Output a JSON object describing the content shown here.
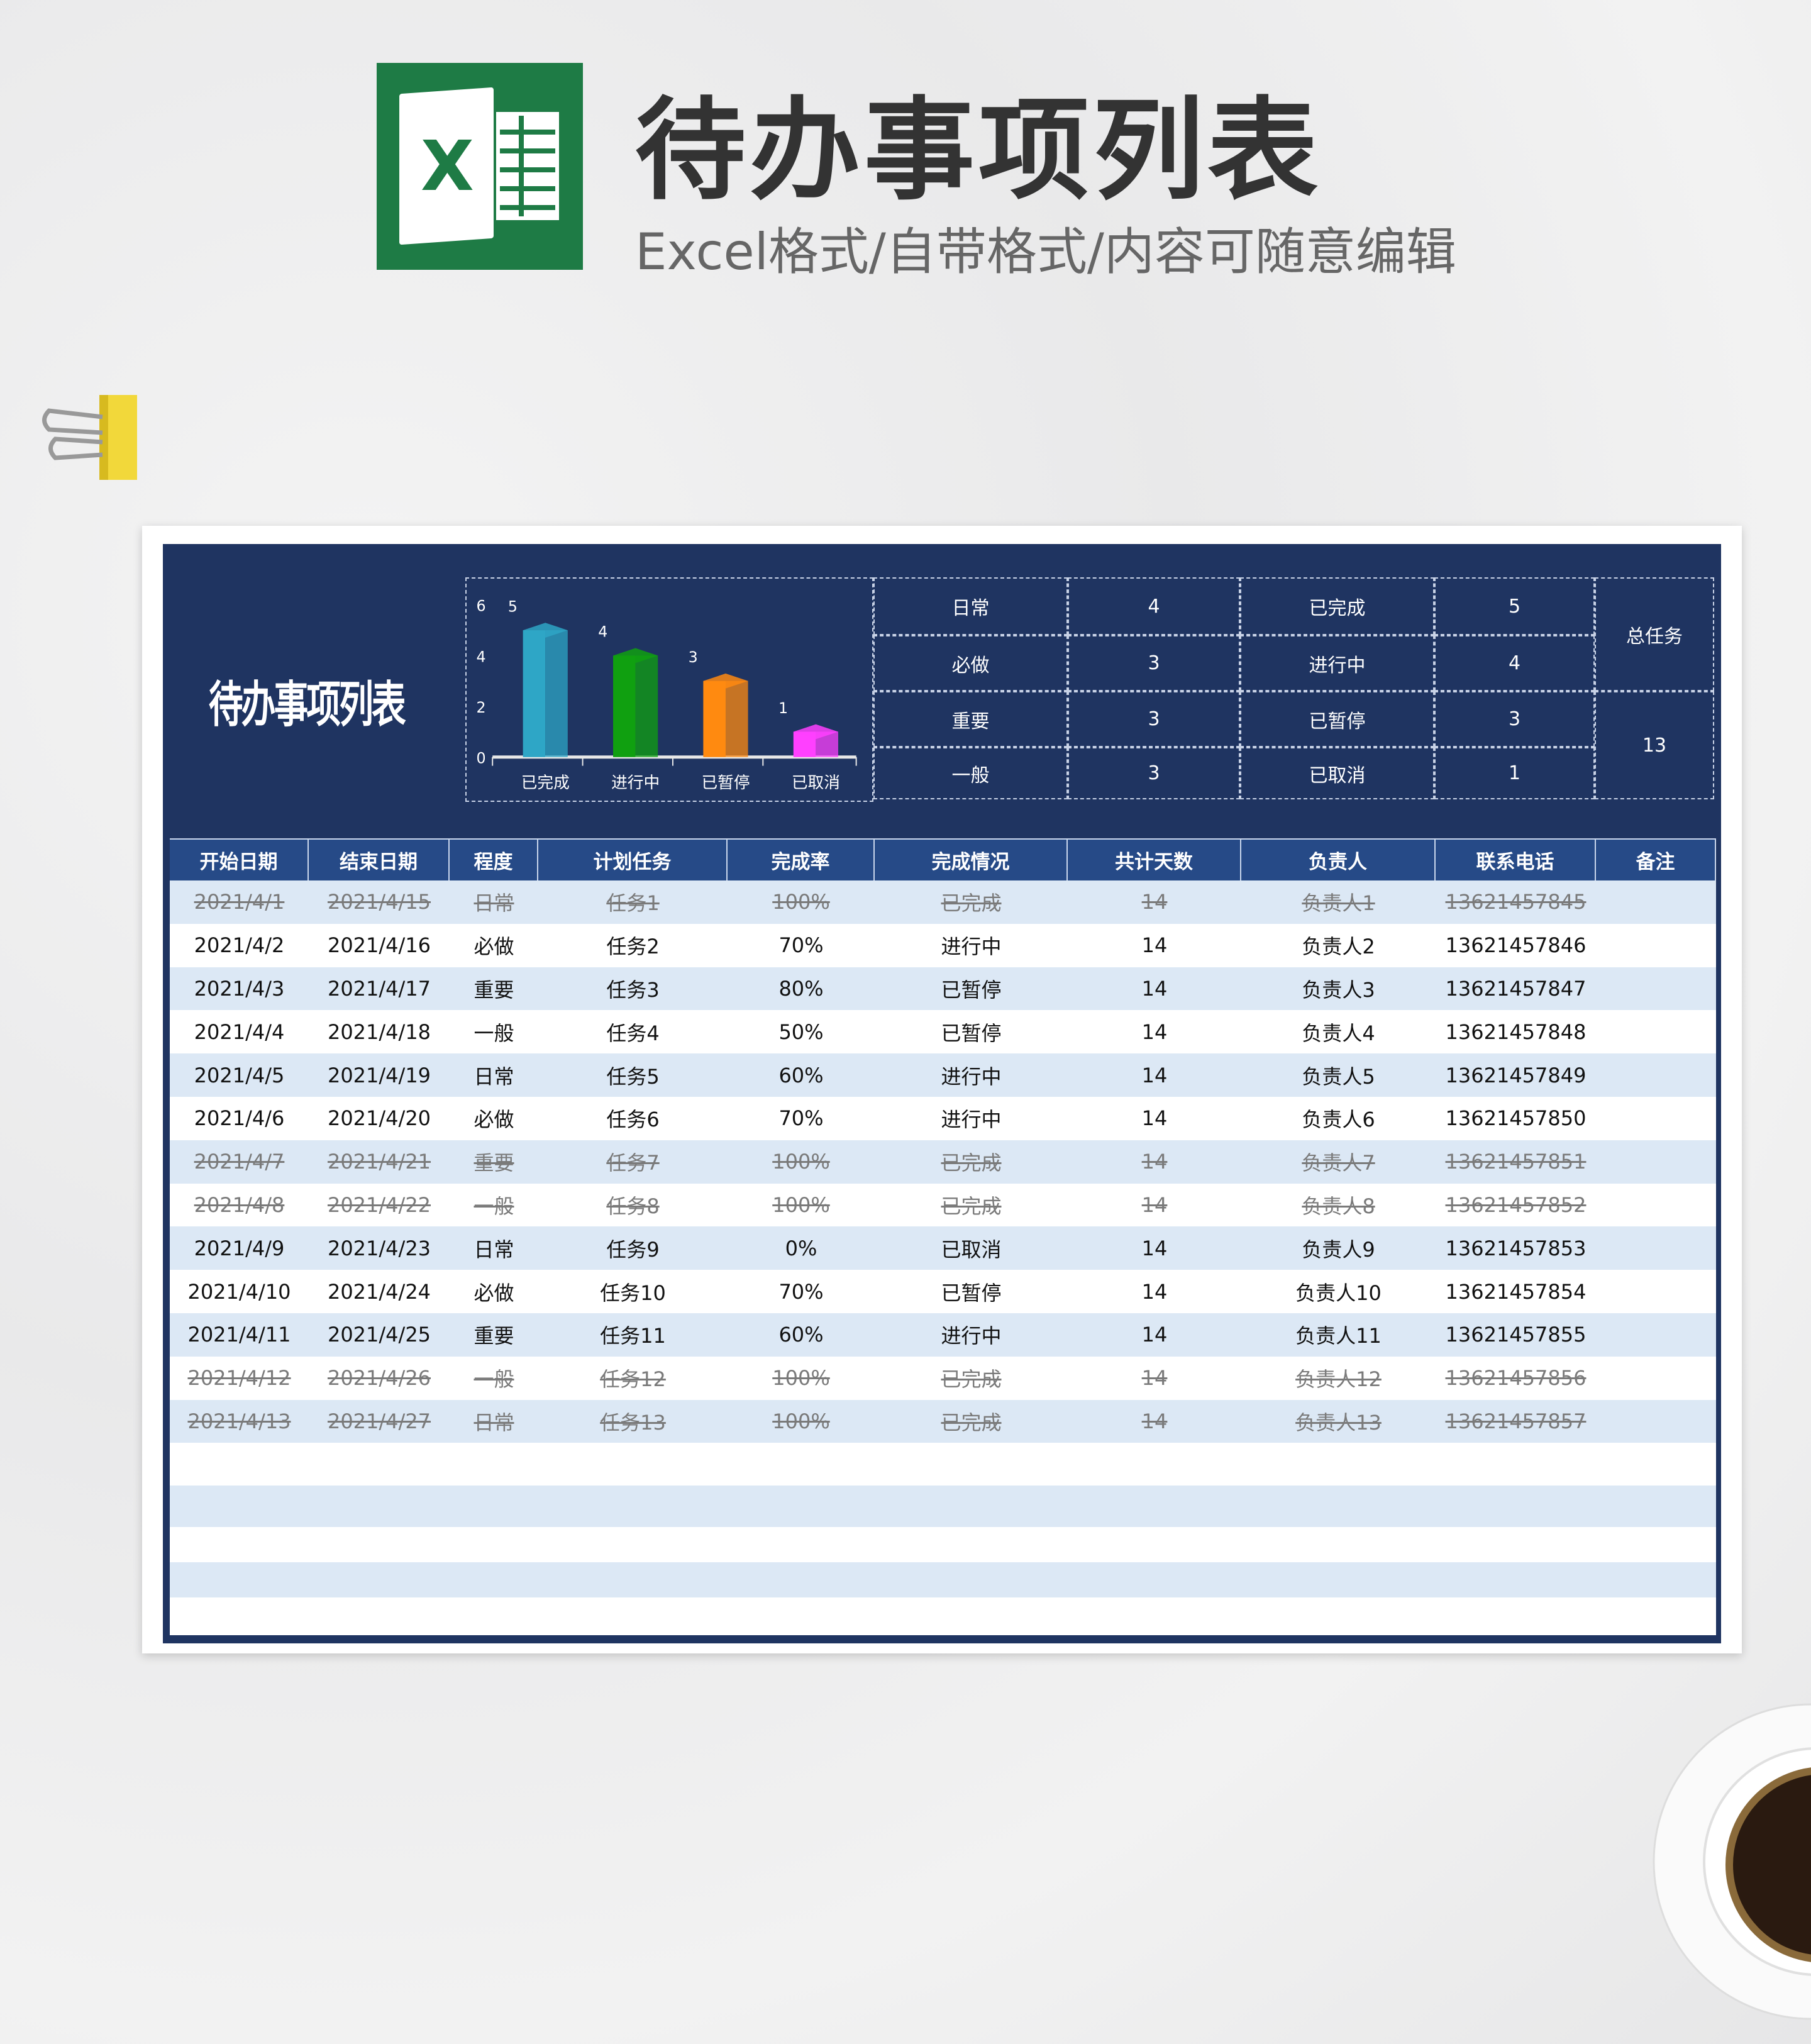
{
  "header": {
    "title": "待办事项列表",
    "subtitle": "Excel格式/自带格式/内容可随意编辑",
    "logo_letter": "X"
  },
  "sheet": {
    "title": "待办事项列表"
  },
  "colors": {
    "navy": "#1f3461",
    "header": "#264a87",
    "stripe": "#dce8f5",
    "excel_green": "#1e7b45"
  },
  "chart_data": {
    "type": "bar",
    "categories": [
      "已完成",
      "进行中",
      "已暂停",
      "已取消"
    ],
    "values": [
      5,
      4,
      3,
      1
    ],
    "ylim": [
      0,
      6
    ],
    "yticks": [
      0,
      2,
      4,
      6
    ],
    "colors": [
      "#2ea6c6",
      "#10a010",
      "#ff8a10",
      "#ff40ff"
    ],
    "grid": false
  },
  "summary": {
    "priority": [
      {
        "label": "日常",
        "count": "4"
      },
      {
        "label": "必做",
        "count": "3"
      },
      {
        "label": "重要",
        "count": "3"
      },
      {
        "label": "一般",
        "count": "3"
      }
    ],
    "status": [
      {
        "label": "已完成",
        "count": "5"
      },
      {
        "label": "进行中",
        "count": "4"
      },
      {
        "label": "已暂停",
        "count": "3"
      },
      {
        "label": "已取消",
        "count": "1"
      }
    ],
    "total_label": "总任务",
    "total": "13"
  },
  "table": {
    "columns": [
      "开始日期",
      "结束日期",
      "程度",
      "计划任务",
      "完成率",
      "完成情况",
      "共计天数",
      "负责人",
      "联系电话",
      "备注"
    ],
    "rows": [
      [
        "2021/4/1",
        "2021/4/15",
        "日常",
        "任务1",
        "100%",
        "已完成",
        "14",
        "负责人1",
        "13621457845",
        ""
      ],
      [
        "2021/4/2",
        "2021/4/16",
        "必做",
        "任务2",
        "70%",
        "进行中",
        "14",
        "负责人2",
        "13621457846",
        ""
      ],
      [
        "2021/4/3",
        "2021/4/17",
        "重要",
        "任务3",
        "80%",
        "已暂停",
        "14",
        "负责人3",
        "13621457847",
        ""
      ],
      [
        "2021/4/4",
        "2021/4/18",
        "一般",
        "任务4",
        "50%",
        "已暂停",
        "14",
        "负责人4",
        "13621457848",
        ""
      ],
      [
        "2021/4/5",
        "2021/4/19",
        "日常",
        "任务5",
        "60%",
        "进行中",
        "14",
        "负责人5",
        "13621457849",
        ""
      ],
      [
        "2021/4/6",
        "2021/4/20",
        "必做",
        "任务6",
        "70%",
        "进行中",
        "14",
        "负责人6",
        "13621457850",
        ""
      ],
      [
        "2021/4/7",
        "2021/4/21",
        "重要",
        "任务7",
        "100%",
        "已完成",
        "14",
        "负责人7",
        "13621457851",
        ""
      ],
      [
        "2021/4/8",
        "2021/4/22",
        "一般",
        "任务8",
        "100%",
        "已完成",
        "14",
        "负责人8",
        "13621457852",
        ""
      ],
      [
        "2021/4/9",
        "2021/4/23",
        "日常",
        "任务9",
        "0%",
        "已取消",
        "14",
        "负责人9",
        "13621457853",
        ""
      ],
      [
        "2021/4/10",
        "2021/4/24",
        "必做",
        "任务10",
        "70%",
        "已暂停",
        "14",
        "负责人10",
        "13621457854",
        ""
      ],
      [
        "2021/4/11",
        "2021/4/25",
        "重要",
        "任务11",
        "60%",
        "进行中",
        "14",
        "负责人11",
        "13621457855",
        ""
      ],
      [
        "2021/4/12",
        "2021/4/26",
        "一般",
        "任务12",
        "100%",
        "已完成",
        "14",
        "负责人12",
        "13621457856",
        ""
      ],
      [
        "2021/4/13",
        "2021/4/27",
        "日常",
        "任务13",
        "100%",
        "已完成",
        "14",
        "负责人13",
        "13621457857",
        ""
      ]
    ]
  }
}
